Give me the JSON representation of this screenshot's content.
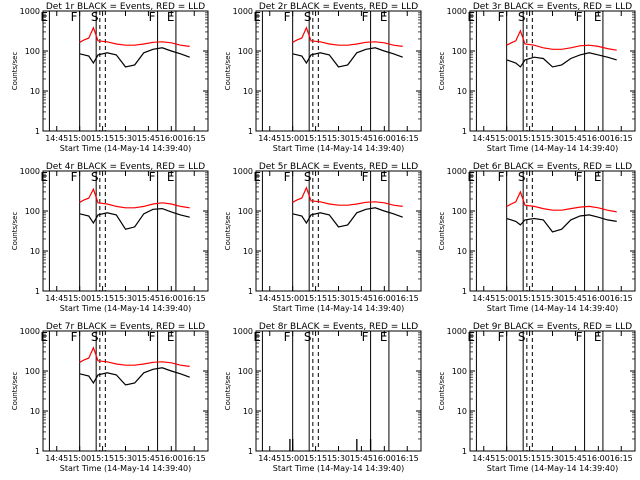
{
  "figure": {
    "x_tick_labels": [
      "14:45",
      "15:00",
      "15:15",
      "15:30",
      "15:45",
      "16:00",
      "16:15"
    ],
    "y_tick_labels": [
      "1",
      "10",
      "100",
      "1000"
    ],
    "ylabel": "Counts/sec",
    "xlabel": "Start Time (14-May-14 14:39:40)",
    "marker_labels": {
      "E": "E",
      "F": "F",
      "S": "S"
    },
    "colors": {
      "events": "#000000",
      "lld": "#ff0000",
      "axes": "#000000"
    }
  },
  "chart_data": [
    {
      "type": "line",
      "title": "Det 1r BLACK = Events, RED = LLD",
      "ylim": [
        1,
        1000
      ],
      "y_scale": "log",
      "x": [
        14.75,
        14.85,
        14.95,
        15.0,
        15.05,
        15.1,
        15.15,
        15.2,
        15.3,
        15.4,
        15.5,
        15.6,
        15.7,
        15.8,
        15.9,
        16.0,
        16.1,
        16.2
      ],
      "series": [
        {
          "values": [
            null,
            null,
            null,
            85,
            80,
            75,
            50,
            80,
            90,
            80,
            40,
            45,
            90,
            110,
            120,
            100,
            85,
            70
          ]
        },
        {
          "values": [
            null,
            null,
            null,
            165,
            190,
            210,
            380,
            180,
            170,
            150,
            140,
            140,
            150,
            165,
            170,
            160,
            140,
            130
          ]
        }
      ]
    },
    {
      "type": "line",
      "title": "Det 2r BLACK = Events, RED = LLD",
      "ylim": [
        1,
        1000
      ],
      "y_scale": "log",
      "x": [
        14.75,
        14.85,
        14.95,
        15.0,
        15.05,
        15.1,
        15.15,
        15.2,
        15.3,
        15.4,
        15.5,
        15.6,
        15.7,
        15.8,
        15.9,
        16.0,
        16.1,
        16.2
      ],
      "series": [
        {
          "values": [
            null,
            null,
            null,
            85,
            80,
            75,
            50,
            80,
            90,
            80,
            40,
            45,
            90,
            110,
            120,
            100,
            85,
            70
          ]
        },
        {
          "values": [
            null,
            null,
            null,
            165,
            190,
            210,
            380,
            180,
            170,
            150,
            140,
            140,
            150,
            165,
            170,
            160,
            140,
            130
          ]
        }
      ]
    },
    {
      "type": "line",
      "title": "Det 3r BLACK = Events, RED = LLD",
      "ylim": [
        1,
        1000
      ],
      "y_scale": "log",
      "x": [
        14.75,
        14.85,
        14.95,
        15.0,
        15.05,
        15.1,
        15.15,
        15.2,
        15.3,
        15.4,
        15.5,
        15.6,
        15.7,
        15.8,
        15.9,
        16.0,
        16.1,
        16.2
      ],
      "series": [
        {
          "values": [
            null,
            null,
            null,
            60,
            55,
            50,
            40,
            60,
            70,
            65,
            40,
            45,
            65,
            80,
            90,
            80,
            70,
            60
          ]
        },
        {
          "values": [
            null,
            null,
            null,
            140,
            160,
            180,
            320,
            150,
            140,
            120,
            110,
            110,
            120,
            135,
            140,
            130,
            115,
            105
          ]
        }
      ]
    },
    {
      "type": "line",
      "title": "Det 4r BLACK = Events, RED = LLD",
      "ylim": [
        1,
        1000
      ],
      "y_scale": "log",
      "x": [
        14.75,
        14.85,
        14.95,
        15.0,
        15.05,
        15.1,
        15.15,
        15.2,
        15.3,
        15.4,
        15.5,
        15.6,
        15.7,
        15.8,
        15.9,
        16.0,
        16.1,
        16.2
      ],
      "series": [
        {
          "values": [
            null,
            null,
            null,
            85,
            80,
            75,
            50,
            80,
            90,
            80,
            35,
            40,
            85,
            110,
            115,
            95,
            80,
            70
          ]
        },
        {
          "values": [
            null,
            null,
            null,
            165,
            190,
            210,
            350,
            160,
            150,
            130,
            120,
            120,
            130,
            150,
            160,
            150,
            130,
            120
          ]
        }
      ]
    },
    {
      "type": "line",
      "title": "Det 5r BLACK = Events, RED = LLD",
      "ylim": [
        1,
        1000
      ],
      "y_scale": "log",
      "x": [
        14.75,
        14.85,
        14.95,
        15.0,
        15.05,
        15.1,
        15.15,
        15.2,
        15.3,
        15.4,
        15.5,
        15.6,
        15.7,
        15.8,
        15.9,
        16.0,
        16.1,
        16.2
      ],
      "series": [
        {
          "values": [
            null,
            null,
            null,
            85,
            80,
            75,
            50,
            80,
            90,
            80,
            40,
            45,
            90,
            110,
            120,
            100,
            85,
            70
          ]
        },
        {
          "values": [
            null,
            null,
            null,
            165,
            190,
            210,
            380,
            180,
            170,
            150,
            140,
            140,
            150,
            165,
            170,
            160,
            140,
            130
          ]
        }
      ]
    },
    {
      "type": "line",
      "title": "Det 6r BLACK = Events, RED = LLD",
      "ylim": [
        1,
        1000
      ],
      "y_scale": "log",
      "x": [
        14.75,
        14.85,
        14.95,
        15.0,
        15.05,
        15.1,
        15.15,
        15.2,
        15.3,
        15.4,
        15.5,
        15.6,
        15.7,
        15.8,
        15.9,
        16.0,
        16.1,
        16.2
      ],
      "series": [
        {
          "values": [
            null,
            null,
            null,
            65,
            60,
            55,
            45,
            60,
            65,
            60,
            30,
            35,
            60,
            75,
            80,
            70,
            60,
            55
          ]
        },
        {
          "values": [
            null,
            null,
            null,
            130,
            150,
            170,
            300,
            140,
            130,
            115,
            105,
            105,
            115,
            125,
            130,
            120,
            105,
            95
          ]
        }
      ]
    },
    {
      "type": "line",
      "title": "Det 7r BLACK = Events, RED = LLD",
      "ylim": [
        1,
        1000
      ],
      "y_scale": "log",
      "x": [
        14.75,
        14.85,
        14.95,
        15.0,
        15.05,
        15.1,
        15.15,
        15.2,
        15.3,
        15.4,
        15.5,
        15.6,
        15.7,
        15.8,
        15.9,
        16.0,
        16.1,
        16.2
      ],
      "series": [
        {
          "values": [
            null,
            null,
            null,
            85,
            80,
            75,
            50,
            80,
            90,
            80,
            45,
            50,
            90,
            110,
            120,
            100,
            85,
            70
          ]
        },
        {
          "values": [
            null,
            null,
            null,
            165,
            190,
            210,
            380,
            180,
            170,
            150,
            140,
            140,
            150,
            165,
            170,
            160,
            140,
            130
          ]
        }
      ]
    },
    {
      "type": "line",
      "title": "Det 8r BLACK = Events, RED = LLD",
      "ylim": [
        1,
        1000
      ],
      "y_scale": "log",
      "x": [
        14.95,
        14.97,
        15.0,
        15.02,
        15.05,
        15.08,
        15.1,
        15.12,
        15.15,
        15.18,
        15.2,
        15.5,
        15.65,
        15.7,
        15.75,
        15.8,
        15.85,
        15.9,
        15.95
      ],
      "series": [
        {
          "values": [
            1,
            2,
            2,
            1,
            1,
            1,
            1,
            1,
            1,
            1,
            1,
            1,
            1,
            2,
            1,
            1,
            2,
            1,
            1
          ]
        }
      ]
    },
    {
      "type": "line",
      "title": "Det 9r BLACK = Events, RED = LLD",
      "ylim": [
        1,
        1000
      ],
      "y_scale": "log",
      "x": [],
      "series": []
    }
  ]
}
